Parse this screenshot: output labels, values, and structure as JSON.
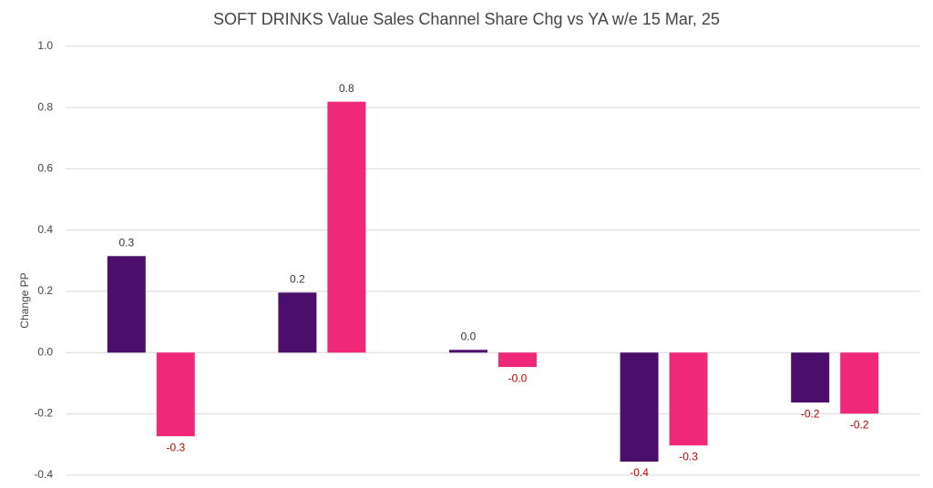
{
  "chart_data": {
    "type": "bar",
    "title": "SOFT DRINKS Value Sales Channel Share Chg vs YA w/e 15 Mar, 25",
    "y_label": "Change PP",
    "categories": [
      null,
      null,
      null,
      null,
      null
    ],
    "series": [
      {
        "color": "#4b0f6b",
        "values": [
          0.315,
          0.196,
          0.009,
          -0.356,
          -0.163
        ],
        "value_labels": [
          "0.3",
          "0.2",
          "0.0",
          "-0.4",
          "-0.2"
        ]
      },
      {
        "color": "#f0287a",
        "values": [
          -0.273,
          0.819,
          -0.047,
          -0.303,
          -0.199
        ],
        "value_labels": [
          "-0.3",
          "0.8",
          "-0.0",
          "-0.3",
          "-0.2"
        ]
      }
    ],
    "ylim": [
      -0.442,
      1.151
    ],
    "yticks": [
      -0.4,
      -0.2,
      {
        "value": 0,
        "label": "0.0"
      },
      0.2,
      0.4,
      0.6,
      0.8,
      {
        "value": 1,
        "label": "1.0"
      }
    ],
    "grid": true,
    "positive_label_color": "#333333",
    "negative_label_color": "#c00000"
  }
}
